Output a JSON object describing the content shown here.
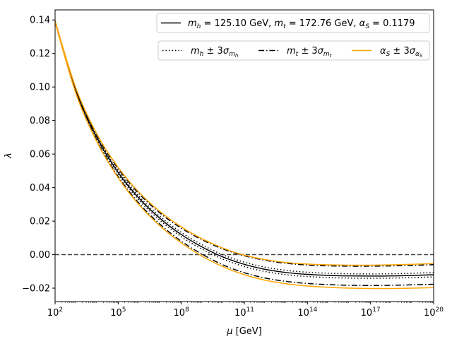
{
  "chart_data": {
    "type": "line",
    "xscale": "log10",
    "xlim_exponent": [
      2,
      20
    ],
    "ylim": [
      -0.028,
      0.146
    ],
    "x_ticks": [
      {
        "exp": 2,
        "label": "10",
        "sup": "2"
      },
      {
        "exp": 5,
        "label": "10",
        "sup": "5"
      },
      {
        "exp": 8,
        "label": "10",
        "sup": "8"
      },
      {
        "exp": 11,
        "label": "10",
        "sup": "11"
      },
      {
        "exp": 14,
        "label": "10",
        "sup": "14"
      },
      {
        "exp": 17,
        "label": "10",
        "sup": "17"
      },
      {
        "exp": 20,
        "label": "10",
        "sup": "20"
      }
    ],
    "y_ticks": [
      {
        "value": -0.02,
        "label": "−0.02"
      },
      {
        "value": 0.0,
        "label": "0.00"
      },
      {
        "value": 0.02,
        "label": "0.02"
      },
      {
        "value": 0.04,
        "label": "0.04"
      },
      {
        "value": 0.06,
        "label": "0.06"
      },
      {
        "value": 0.08,
        "label": "0.08"
      },
      {
        "value": 0.1,
        "label": "0.10"
      },
      {
        "value": 0.12,
        "label": "0.12"
      },
      {
        "value": 0.14,
        "label": "0.14"
      }
    ],
    "xlabel": "μ [GeV]",
    "ylabel": "λ",
    "reference_line": {
      "y": 0.0,
      "style": "dashed",
      "color": "#444444"
    },
    "x_exponents": [
      2,
      3,
      4,
      5,
      6,
      7,
      8,
      9,
      10,
      11,
      12,
      13,
      14,
      15,
      16,
      17,
      18,
      19,
      20
    ],
    "series": [
      {
        "name": "central",
        "style": "solid",
        "color": "#000000",
        "values": [
          0.139,
          0.0975,
          0.0695,
          0.049,
          0.0335,
          0.0215,
          0.012,
          0.0045,
          -0.0015,
          -0.0058,
          -0.0088,
          -0.0107,
          -0.0118,
          -0.0124,
          -0.0127,
          -0.0128,
          -0.0127,
          -0.0124,
          -0.012
        ]
      },
      {
        "name": "mh_plus",
        "style": "dotted",
        "color": "#000000",
        "values": [
          0.1395,
          0.0982,
          0.0703,
          0.05,
          0.0346,
          0.0227,
          0.0133,
          0.0058,
          -0.0002,
          -0.0045,
          -0.0075,
          -0.0094,
          -0.0105,
          -0.0111,
          -0.0114,
          -0.0115,
          -0.0114,
          -0.0111,
          -0.0107
        ]
      },
      {
        "name": "mh_minus",
        "style": "dotted",
        "color": "#000000",
        "values": [
          0.1385,
          0.0968,
          0.0687,
          0.0481,
          0.0324,
          0.0203,
          0.0107,
          0.0032,
          -0.0028,
          -0.0071,
          -0.0101,
          -0.012,
          -0.0131,
          -0.0137,
          -0.014,
          -0.0141,
          -0.014,
          -0.0137,
          -0.0133
        ]
      },
      {
        "name": "mt_minus",
        "style": "dashdot",
        "color": "#000000",
        "values": [
          0.1392,
          0.0985,
          0.071,
          0.0512,
          0.0362,
          0.0247,
          0.0158,
          0.0088,
          0.0033,
          -0.0007,
          -0.0034,
          -0.0052,
          -0.0062,
          -0.0067,
          -0.0069,
          -0.0069,
          -0.0067,
          -0.0064,
          -0.006
        ]
      },
      {
        "name": "mt_plus",
        "style": "dashdot",
        "color": "#000000",
        "values": [
          0.1388,
          0.0962,
          0.0677,
          0.0466,
          0.0305,
          0.018,
          0.008,
          0.0002,
          -0.0062,
          -0.0108,
          -0.014,
          -0.016,
          -0.0172,
          -0.0179,
          -0.0183,
          -0.0184,
          -0.0183,
          -0.018,
          -0.0177
        ]
      },
      {
        "name": "as_plus",
        "style": "solid",
        "color": "#FFA500",
        "values": [
          0.1392,
          0.099,
          0.0717,
          0.052,
          0.0371,
          0.0256,
          0.0166,
          0.0094,
          0.0038,
          -0.0003,
          -0.003,
          -0.0047,
          -0.0056,
          -0.0061,
          -0.0063,
          -0.0063,
          -0.0061,
          -0.0058,
          -0.0053
        ]
      },
      {
        "name": "as_minus",
        "style": "solid",
        "color": "#FFA500",
        "values": [
          0.1388,
          0.0958,
          0.067,
          0.0458,
          0.0296,
          0.017,
          0.007,
          -0.001,
          -0.0073,
          -0.012,
          -0.0153,
          -0.0174,
          -0.0187,
          -0.0195,
          -0.02,
          -0.0202,
          -0.0202,
          -0.02,
          -0.0197
        ]
      }
    ],
    "legend": {
      "position": "top-right",
      "row1": [
        {
          "parts": [
            [
              "",
              "m"
            ],
            [
              "sub",
              "h"
            ],
            [
              "",
              " = 125.10 GeV, "
            ],
            [
              "i",
              "m"
            ],
            [
              "sub",
              "t"
            ],
            [
              "",
              " = 172.76 GeV, "
            ],
            [
              "i",
              "α"
            ],
            [
              "sub",
              "S"
            ],
            [
              "",
              " = 0.1179"
            ]
          ],
          "style": "solid",
          "color": "#000000"
        }
      ],
      "row2": [
        {
          "parts": [
            [
              "i",
              "m"
            ],
            [
              "sub",
              "h"
            ],
            [
              "",
              " ± 3"
            ],
            [
              "i",
              "σ"
            ],
            [
              "sub",
              "m"
            ],
            [
              "subsub",
              "h"
            ]
          ],
          "style": "dotted",
          "color": "#000000"
        },
        {
          "parts": [
            [
              "i",
              "m"
            ],
            [
              "sub",
              "t"
            ],
            [
              "",
              " ± 3"
            ],
            [
              "i",
              "σ"
            ],
            [
              "sub",
              "m"
            ],
            [
              "subsub",
              "t"
            ]
          ],
          "style": "dashdot",
          "color": "#000000"
        },
        {
          "parts": [
            [
              "i",
              "α"
            ],
            [
              "sub",
              "S"
            ],
            [
              "",
              " ± 3"
            ],
            [
              "i",
              "σ"
            ],
            [
              "sub",
              "α"
            ],
            [
              "subsub",
              "S"
            ]
          ],
          "style": "solid",
          "color": "#FFA500"
        }
      ]
    }
  }
}
